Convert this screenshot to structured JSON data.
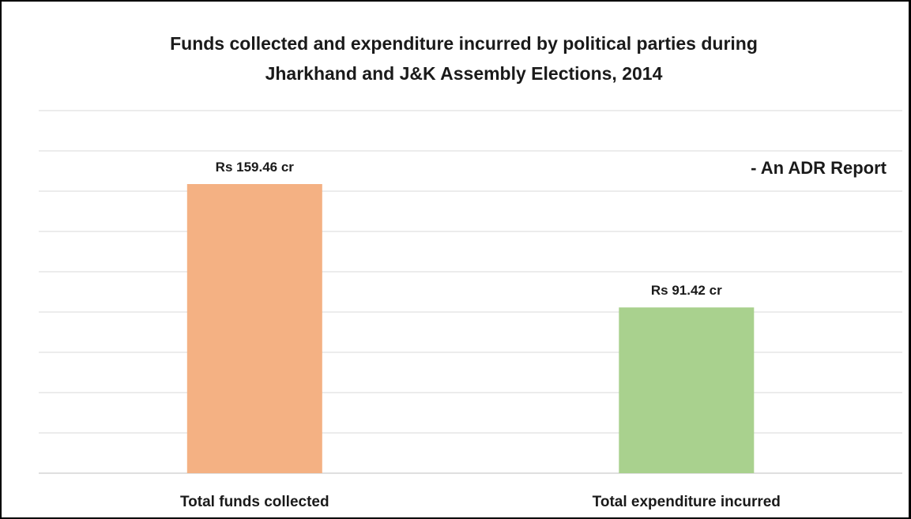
{
  "chart_data": {
    "type": "bar",
    "title_lines": [
      "Funds collected and expenditure incurred by political parties during",
      "Jharkhand and J&K Assembly Elections, 2014"
    ],
    "categories": [
      "Total funds collected",
      "Total expenditure incurred"
    ],
    "values": [
      159.46,
      91.42
    ],
    "data_labels": [
      "Rs 159.46 cr",
      "Rs 91.42 cr"
    ],
    "colors": [
      "#f4b183",
      "#a9d18e"
    ],
    "unit": "Rs crore",
    "ylim": [
      0,
      200
    ],
    "grid": true,
    "annotation": "- An ADR Report"
  }
}
